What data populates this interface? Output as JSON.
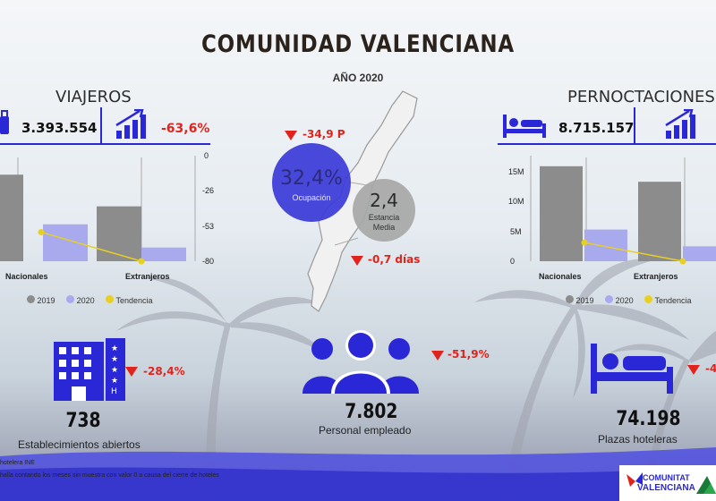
{
  "header": {
    "title": "COMUNIDAD VALENCIANA",
    "year": "AÑO 2020"
  },
  "viajeros": {
    "title": "VIAJEROS",
    "total": "3.393.554",
    "change": "-63,6%",
    "chart_data": {
      "type": "bar",
      "categories": [
        "Nacionales",
        "Extranjeros"
      ],
      "y_tick_labels": [
        "0",
        "-26",
        "-53",
        "-80"
      ],
      "series": [
        {
          "name": "2019",
          "values": [
            null,
            null
          ],
          "color": "#8c8c8c"
        },
        {
          "name": "2020",
          "values": [
            null,
            null
          ],
          "color": "#a9a9ee"
        },
        {
          "name": "Tendencia",
          "values": [
            -58,
            -80
          ],
          "color": "#e8d020"
        }
      ],
      "bar_levels": {
        "2019": [
          0.82,
          0.52
        ],
        "2020": [
          0.35,
          0.13
        ]
      },
      "legend": [
        "2019",
        "2020",
        "Tendencia"
      ]
    }
  },
  "pernoctaciones": {
    "title": "PERNOCTACIONES",
    "total": "8.715.157",
    "chart_data": {
      "type": "bar",
      "categories": [
        "Nacionales",
        "Extranjeros"
      ],
      "y_tick_labels": [
        "0",
        "5M",
        "10M",
        "15M"
      ],
      "ylim": [
        0,
        17
      ],
      "series": [
        {
          "name": "2019",
          "values": [
            15.3,
            12.8
          ],
          "color": "#8c8c8c"
        },
        {
          "name": "2020",
          "values": [
            5.1,
            2.4
          ],
          "color": "#a9a9ee"
        },
        {
          "name": "Tendencia",
          "values": [
            3.0,
            0
          ],
          "color": "#e8d020"
        }
      ],
      "legend": [
        "2019",
        "2020",
        "Tendencia"
      ]
    }
  },
  "map": {
    "ocupacion_value": "32,4%",
    "ocupacion_label": "Ocupación",
    "ocupacion_change": "-34,9 P",
    "estancia_value": "2,4",
    "estancia_label_1": "Estancia",
    "estancia_label_2": "Media",
    "estancia_change": "-0,7 días"
  },
  "stats": {
    "establecimientos": {
      "value": "738",
      "label": "Establecimientos abiertos",
      "change": "-28,4%"
    },
    "personal": {
      "value": "7.802",
      "label": "Personal empleado",
      "change": "-51,9%"
    },
    "plazas": {
      "value": "74.198",
      "label": "Plazas hoteleras",
      "change": "-4"
    }
  },
  "footer": {
    "source": "hotelera INE",
    "note": "halla contando los meses sin muestra  con valor 0 a causa del cierre de hoteles",
    "logo_1": "COMUNITAT",
    "logo_2": "VALENCIANA"
  },
  "colors": {
    "accent": "#2a28d6",
    "red": "#e0231c",
    "gray": "#8c8c8c",
    "lilac": "#a9a9ee",
    "yellow": "#e8d020"
  }
}
